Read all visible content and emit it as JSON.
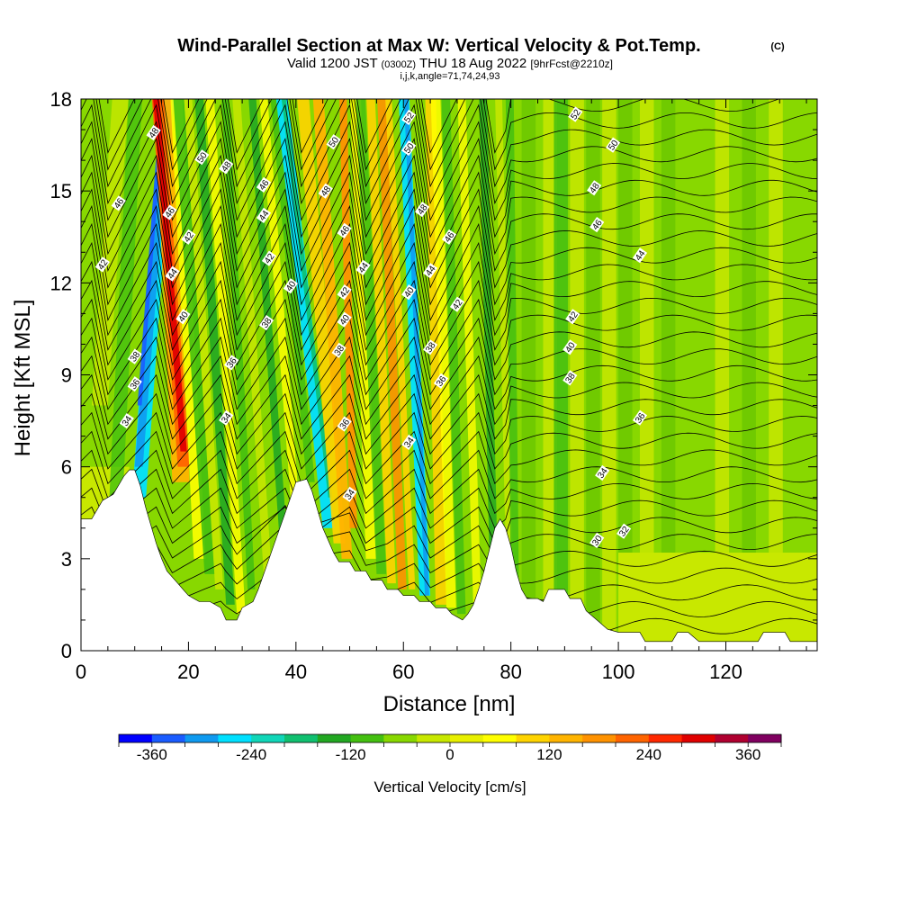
{
  "title": "Wind-Parallel Section at Max W: Vertical Velocity & Pot.Temp.",
  "copyright": "(C)",
  "subtitle": {
    "valid": "Valid 1200 JST",
    "utc": "(0300Z)",
    "date": "THU 18 Aug 2022",
    "fcst": "[9hrFcst@2210z]"
  },
  "indices": "i,j,k,angle=71,74,24,93",
  "chart_data": {
    "type": "heatmap",
    "xlabel": "Distance [nm]",
    "ylabel": "Height [Kft MSL]",
    "xlim": [
      0,
      137
    ],
    "ylim": [
      0,
      18
    ],
    "x_ticks": [
      0,
      20,
      40,
      60,
      80,
      100,
      120
    ],
    "y_ticks": [
      0,
      3,
      6,
      9,
      12,
      15,
      18
    ],
    "colorbar": {
      "label": "Vertical Velocity [cm/s]",
      "tick_values": [
        -360,
        -240,
        -120,
        0,
        120,
        240,
        360
      ],
      "levels": [
        -400,
        -360,
        -320,
        -280,
        -240,
        -200,
        -160,
        -120,
        -80,
        -40,
        0,
        40,
        80,
        120,
        160,
        200,
        240,
        280,
        320,
        360,
        400
      ],
      "colors": [
        "#0000ff",
        "#1a5cff",
        "#0f9af0",
        "#00e0ff",
        "#10d6b8",
        "#10c070",
        "#22a822",
        "#44c010",
        "#88d800",
        "#c8e800",
        "#e8f000",
        "#ffff00",
        "#ffd400",
        "#ffb400",
        "#ff9200",
        "#ff6400",
        "#ff2800",
        "#e00000",
        "#b00030",
        "#800060",
        "#5a0090"
      ]
    },
    "terrain": [
      [
        0,
        4.3
      ],
      [
        2,
        4.3
      ],
      [
        3,
        4.6
      ],
      [
        4,
        4.9
      ],
      [
        6,
        5.1
      ],
      [
        7,
        5.4
      ],
      [
        8,
        5.7
      ],
      [
        9,
        5.9
      ],
      [
        10,
        5.9
      ],
      [
        11,
        5.4
      ],
      [
        12,
        4.7
      ],
      [
        13,
        4.1
      ],
      [
        14,
        3.5
      ],
      [
        15,
        3.0
      ],
      [
        16,
        2.6
      ],
      [
        17,
        2.4
      ],
      [
        18,
        2.2
      ],
      [
        19,
        2.0
      ],
      [
        20,
        1.8
      ],
      [
        21,
        1.7
      ],
      [
        22,
        1.6
      ],
      [
        24,
        1.6
      ],
      [
        26,
        1.4
      ],
      [
        27,
        1.0
      ],
      [
        29,
        1.0
      ],
      [
        30,
        1.4
      ],
      [
        32,
        1.6
      ],
      [
        33,
        2.0
      ],
      [
        34,
        2.5
      ],
      [
        35,
        3.0
      ],
      [
        36,
        3.5
      ],
      [
        37,
        4.0
      ],
      [
        38,
        4.5
      ],
      [
        39,
        5.0
      ],
      [
        40,
        5.5
      ],
      [
        42,
        5.6
      ],
      [
        43,
        5.2
      ],
      [
        44,
        4.6
      ],
      [
        45,
        4.0
      ],
      [
        46,
        3.6
      ],
      [
        47,
        3.2
      ],
      [
        48,
        2.9
      ],
      [
        50,
        2.9
      ],
      [
        51,
        2.6
      ],
      [
        53,
        2.6
      ],
      [
        54,
        2.3
      ],
      [
        56,
        2.3
      ],
      [
        57,
        2.0
      ],
      [
        59,
        2.0
      ],
      [
        60,
        1.8
      ],
      [
        62,
        1.8
      ],
      [
        63,
        1.6
      ],
      [
        65,
        1.6
      ],
      [
        66,
        1.4
      ],
      [
        68,
        1.4
      ],
      [
        69,
        1.2
      ],
      [
        71,
        1.0
      ],
      [
        72,
        1.2
      ],
      [
        73,
        1.5
      ],
      [
        74,
        2.0
      ],
      [
        75,
        2.6
      ],
      [
        76,
        3.3
      ],
      [
        77,
        4.0
      ],
      [
        78,
        4.3
      ],
      [
        79,
        4.0
      ],
      [
        80,
        3.4
      ],
      [
        81,
        2.6
      ],
      [
        82,
        2.0
      ],
      [
        83,
        1.7
      ],
      [
        85,
        1.7
      ],
      [
        86,
        1.6
      ],
      [
        87,
        2.0
      ],
      [
        90,
        2.0
      ],
      [
        91,
        1.7
      ],
      [
        93,
        1.7
      ],
      [
        94,
        1.3
      ],
      [
        96,
        1.0
      ],
      [
        98,
        0.7
      ],
      [
        100,
        0.6
      ],
      [
        104,
        0.6
      ],
      [
        105,
        0.3
      ],
      [
        110,
        0.3
      ],
      [
        111,
        0.6
      ],
      [
        113,
        0.6
      ],
      [
        115,
        0.3
      ],
      [
        126,
        0.3
      ],
      [
        127,
        0.6
      ],
      [
        131,
        0.6
      ],
      [
        132,
        0.3
      ],
      [
        137,
        0.3
      ]
    ],
    "contour_labels": [
      {
        "x": 7,
        "y": 14.6,
        "text": "46"
      },
      {
        "x": 4,
        "y": 12.6,
        "text": "42"
      },
      {
        "x": 13.5,
        "y": 16.9,
        "text": "48"
      },
      {
        "x": 16.5,
        "y": 14.3,
        "text": "46"
      },
      {
        "x": 20,
        "y": 13.5,
        "text": "42"
      },
      {
        "x": 17,
        "y": 12.3,
        "text": "44"
      },
      {
        "x": 19,
        "y": 10.9,
        "text": "40"
      },
      {
        "x": 10,
        "y": 9.6,
        "text": "38"
      },
      {
        "x": 10,
        "y": 8.7,
        "text": "36"
      },
      {
        "x": 8.5,
        "y": 7.5,
        "text": "34"
      },
      {
        "x": 22.5,
        "y": 16.1,
        "text": "50"
      },
      {
        "x": 27,
        "y": 15.8,
        "text": "48"
      },
      {
        "x": 34,
        "y": 15.2,
        "text": "46"
      },
      {
        "x": 34,
        "y": 14.2,
        "text": "44"
      },
      {
        "x": 35,
        "y": 12.8,
        "text": "42"
      },
      {
        "x": 39,
        "y": 11.9,
        "text": "40"
      },
      {
        "x": 34.5,
        "y": 10.7,
        "text": "38"
      },
      {
        "x": 28,
        "y": 9.4,
        "text": "36"
      },
      {
        "x": 27,
        "y": 7.6,
        "text": "34"
      },
      {
        "x": 47,
        "y": 16.6,
        "text": "50"
      },
      {
        "x": 45.5,
        "y": 15.0,
        "text": "48"
      },
      {
        "x": 49,
        "y": 13.7,
        "text": "46"
      },
      {
        "x": 52.5,
        "y": 12.5,
        "text": "44"
      },
      {
        "x": 49,
        "y": 11.7,
        "text": "42"
      },
      {
        "x": 49,
        "y": 10.8,
        "text": "40"
      },
      {
        "x": 48,
        "y": 9.8,
        "text": "38"
      },
      {
        "x": 49,
        "y": 7.4,
        "text": "36"
      },
      {
        "x": 50,
        "y": 5.1,
        "text": "34"
      },
      {
        "x": 61,
        "y": 17.4,
        "text": "52"
      },
      {
        "x": 61,
        "y": 16.4,
        "text": "50"
      },
      {
        "x": 63.5,
        "y": 14.4,
        "text": "48"
      },
      {
        "x": 68.5,
        "y": 13.5,
        "text": "46"
      },
      {
        "x": 65,
        "y": 12.4,
        "text": "44"
      },
      {
        "x": 61,
        "y": 11.7,
        "text": "40"
      },
      {
        "x": 70,
        "y": 11.3,
        "text": "42"
      },
      {
        "x": 65,
        "y": 9.9,
        "text": "38"
      },
      {
        "x": 67,
        "y": 8.8,
        "text": "36"
      },
      {
        "x": 61,
        "y": 6.8,
        "text": "34"
      },
      {
        "x": 92,
        "y": 17.5,
        "text": "52"
      },
      {
        "x": 99,
        "y": 16.5,
        "text": "50"
      },
      {
        "x": 95.5,
        "y": 15.1,
        "text": "48"
      },
      {
        "x": 96,
        "y": 13.9,
        "text": "46"
      },
      {
        "x": 104,
        "y": 12.9,
        "text": "44"
      },
      {
        "x": 91.5,
        "y": 10.9,
        "text": "42"
      },
      {
        "x": 91,
        "y": 9.9,
        "text": "40"
      },
      {
        "x": 91,
        "y": 8.9,
        "text": "38"
      },
      {
        "x": 104,
        "y": 7.6,
        "text": "36"
      },
      {
        "x": 97,
        "y": 5.8,
        "text": "34"
      },
      {
        "x": 101,
        "y": 3.9,
        "text": "32"
      },
      {
        "x": 96,
        "y": 3.6,
        "text": "30"
      }
    ]
  }
}
